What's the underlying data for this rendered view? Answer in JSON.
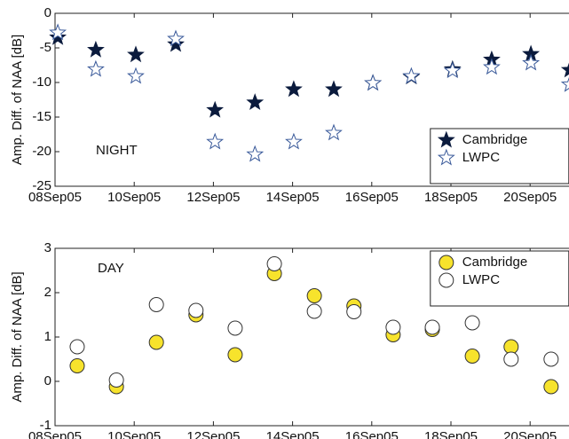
{
  "chart_data": [
    {
      "type": "scatter",
      "ylabel": "Amp. Diff. of NAA [dB]",
      "annotation": "NIGHT",
      "legend": "lower right",
      "xlim": [
        8,
        21
      ],
      "ylim": [
        -25,
        0
      ],
      "xticks": [
        {
          "value": 8,
          "label": "08Sep05"
        },
        {
          "value": 10,
          "label": "10Sep05"
        },
        {
          "value": 12,
          "label": "12Sep05"
        },
        {
          "value": 14,
          "label": "14Sep05"
        },
        {
          "value": 16,
          "label": "16Sep05"
        },
        {
          "value": 18,
          "label": "18Sep05"
        },
        {
          "value": 20,
          "label": "20Sep05"
        }
      ],
      "yticks": [
        -25,
        -20,
        -15,
        -10,
        -5,
        0
      ],
      "x": [
        8.07,
        9.03,
        10.04,
        11.05,
        12.04,
        13.05,
        14.03,
        15.04,
        16.03,
        17.0,
        18.04,
        19.03,
        20.02,
        21.0
      ],
      "series": [
        {
          "name": "Cambridge",
          "marker": "star",
          "color": "#0b1b3d",
          "edgecolor": "#0b1b3d",
          "values": [
            -3.5,
            -5.3,
            -6.0,
            -4.5,
            -14.0,
            -12.9,
            -11.0,
            -11.0,
            -10.1,
            -9.2,
            -8.1,
            -6.7,
            -5.9,
            -8.2
          ]
        },
        {
          "name": "LWPC",
          "marker": "star",
          "color": "#ffffff",
          "edgecolor": "#3a5a9a",
          "values": [
            -2.8,
            -8.1,
            -9.1,
            -3.7,
            -18.6,
            -20.4,
            -18.6,
            -17.3,
            -10.1,
            -9.1,
            -8.3,
            -7.8,
            -7.2,
            -10.3
          ]
        }
      ]
    },
    {
      "type": "scatter",
      "ylabel": "Amp. Diff. of NAA [dB]",
      "annotation": "DAY",
      "legend": "upper right",
      "xlim": [
        8,
        21
      ],
      "ylim": [
        -1,
        3
      ],
      "xticks": [
        {
          "value": 8,
          "label": "08Sep05"
        },
        {
          "value": 10,
          "label": "10Sep05"
        },
        {
          "value": 12,
          "label": "12Sep05"
        },
        {
          "value": 14,
          "label": "14Sep05"
        },
        {
          "value": 16,
          "label": "16Sep05"
        },
        {
          "value": 18,
          "label": "18Sep05"
        },
        {
          "value": 20,
          "label": "20Sep05"
        }
      ],
      "yticks": [
        -1,
        0,
        1,
        2,
        3
      ],
      "x": [
        8.56,
        9.55,
        10.56,
        11.56,
        12.55,
        13.54,
        14.55,
        15.55,
        16.54,
        17.53,
        18.54,
        19.52,
        20.53
      ],
      "series": [
        {
          "name": "Cambridge",
          "marker": "circle",
          "color": "#f7e32c",
          "edgecolor": "#333333",
          "values": [
            0.35,
            -0.12,
            0.88,
            1.5,
            0.6,
            2.43,
            1.93,
            1.7,
            1.05,
            1.17,
            0.57,
            0.78,
            -0.12
          ]
        },
        {
          "name": "LWPC",
          "marker": "circle",
          "color": "#ffffff",
          "edgecolor": "#333333",
          "values": [
            0.78,
            0.03,
            1.73,
            1.6,
            1.2,
            2.65,
            1.58,
            1.57,
            1.22,
            1.22,
            1.32,
            0.5,
            0.5
          ]
        }
      ]
    }
  ]
}
